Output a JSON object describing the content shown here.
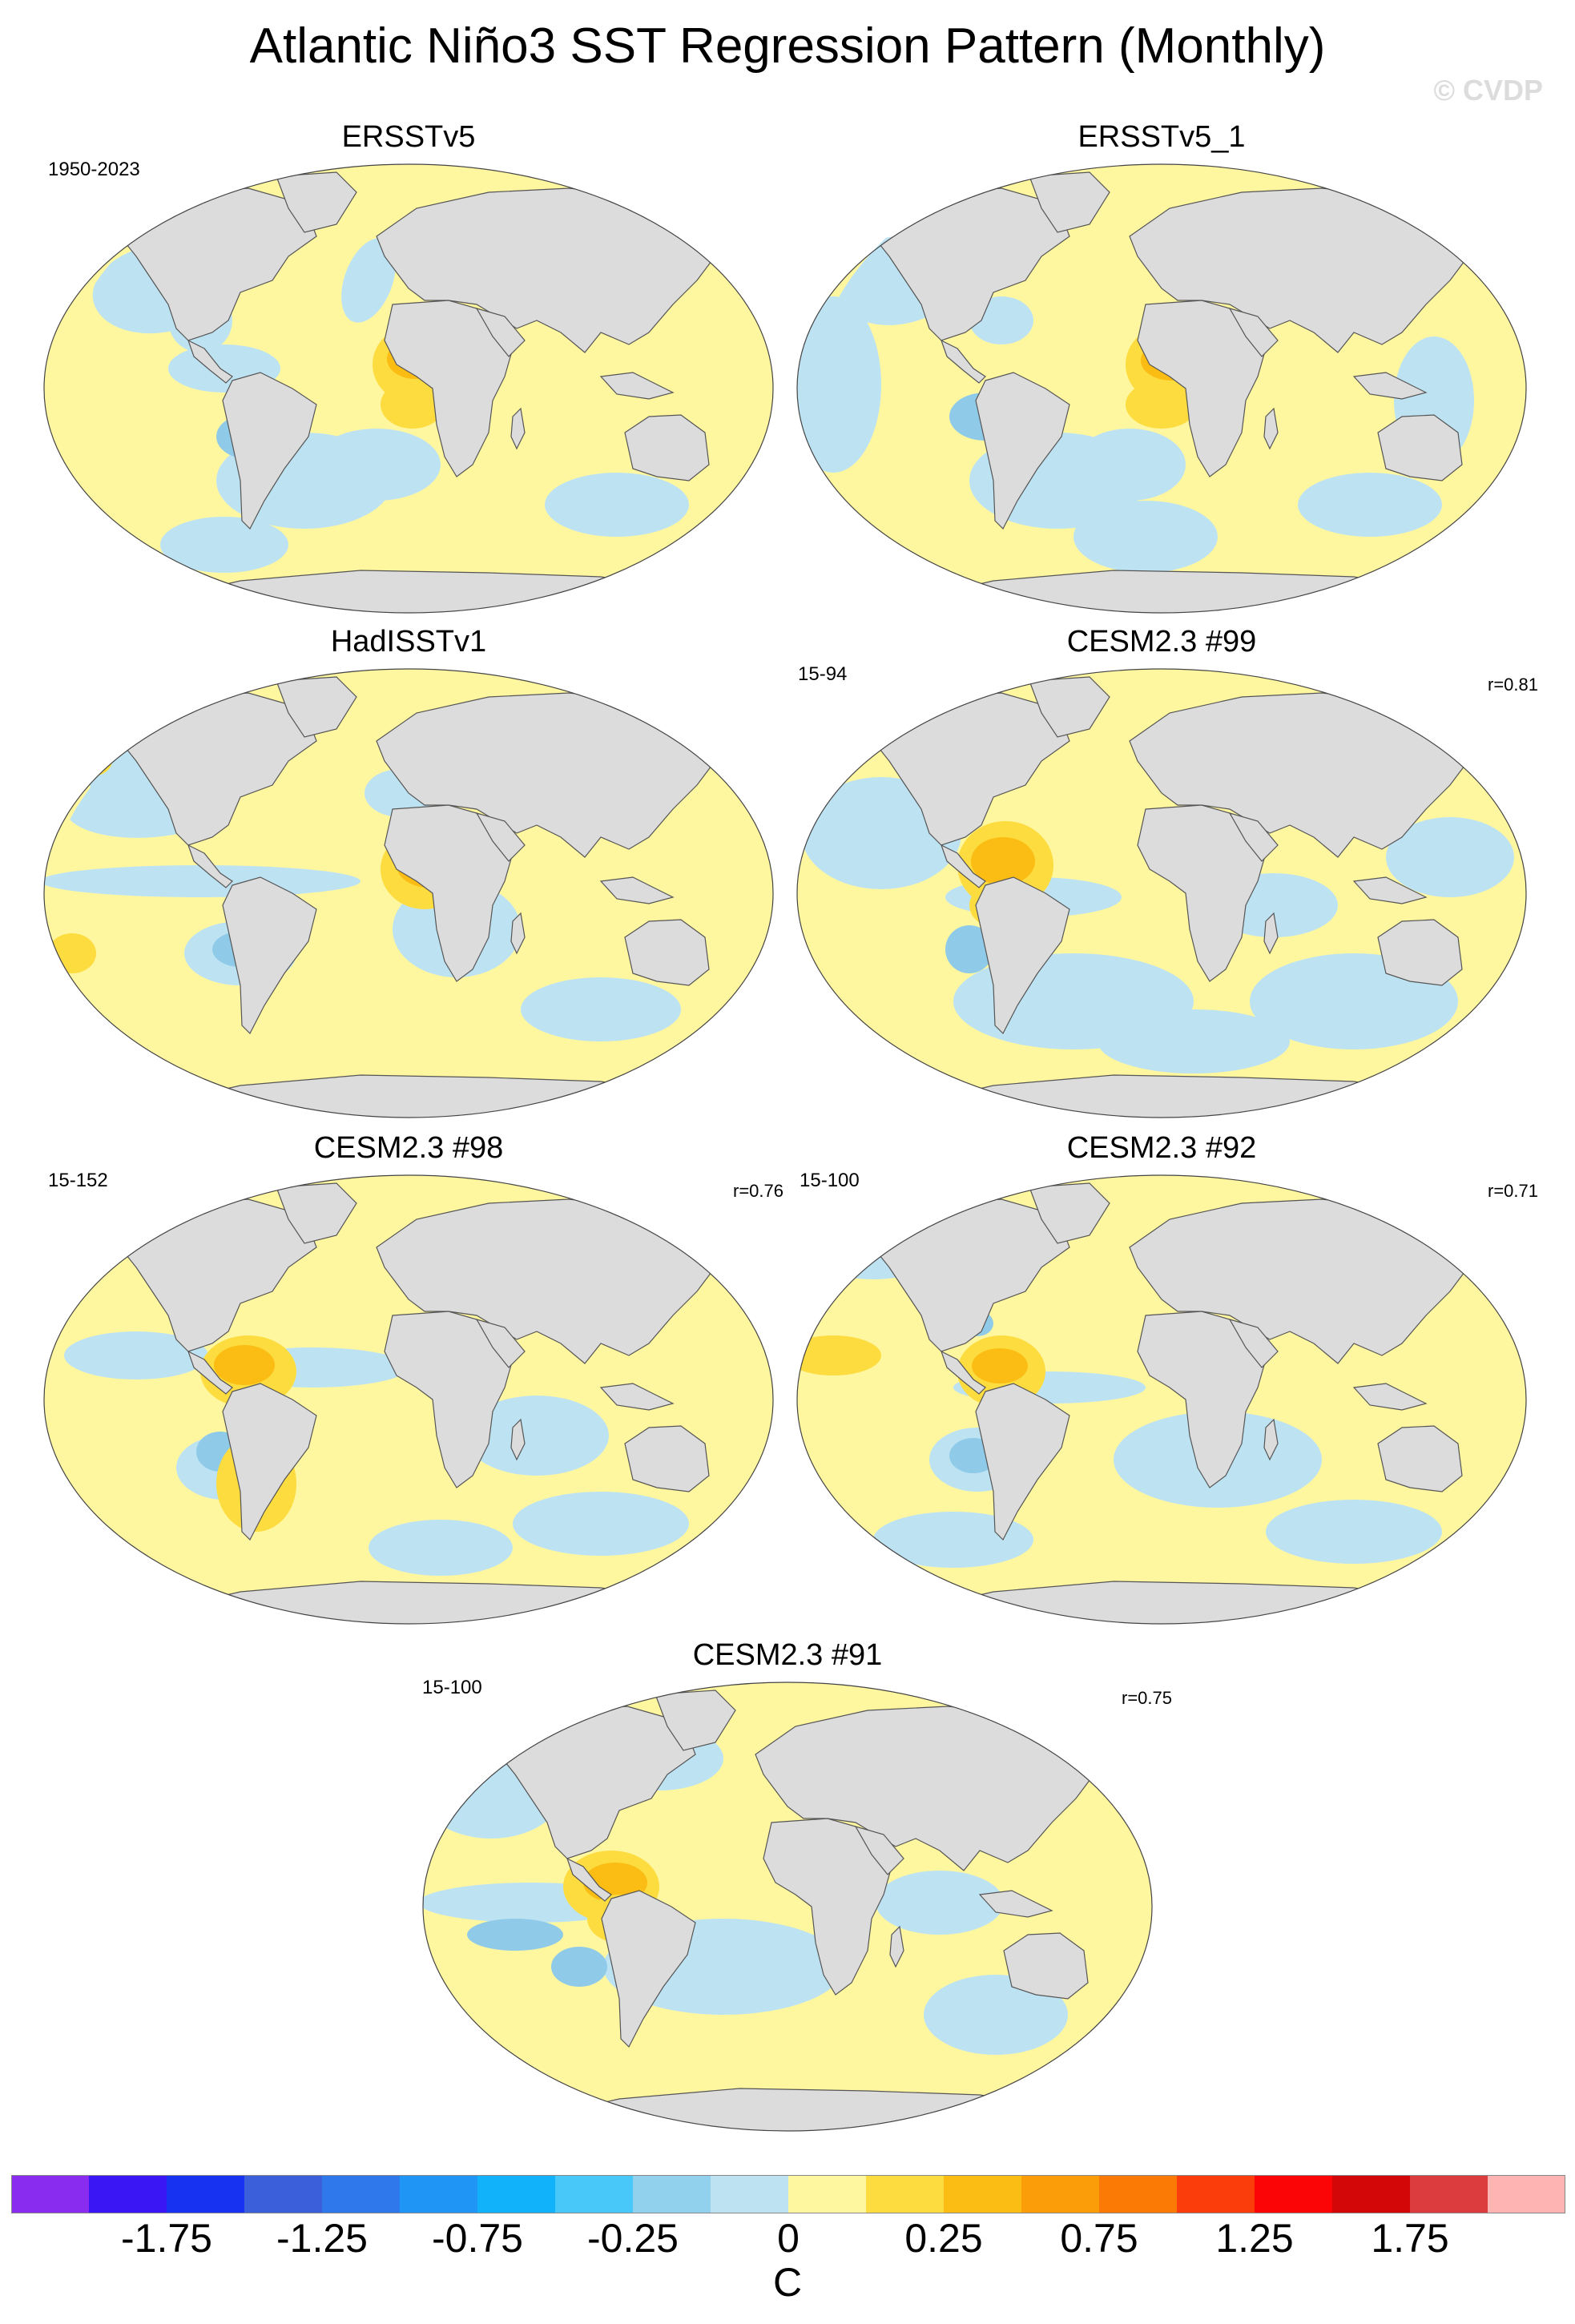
{
  "title": "Atlantic Niño3 SST Regression Pattern (Monthly)",
  "watermark": "© CVDP",
  "colors": {
    "land": "#dcdcdc",
    "coast": "#555555",
    "neg1": "#bde3f3",
    "neg2": "#8fcbe9",
    "pos1": "#fff6a0",
    "pos2": "#fddc3f",
    "pos3": "#fbbd14"
  },
  "panels": [
    {
      "name": "ERSSTv5",
      "left_text": "1950-2023",
      "right_text": ""
    },
    {
      "name": "ERSSTv5_1",
      "left_text": "",
      "right_text": ""
    },
    {
      "name": "HadISSTv1",
      "left_text": "",
      "right_text": ""
    },
    {
      "name": "CESM2.3 #99",
      "left_text": "15-94",
      "right_text": "r=0.81"
    },
    {
      "name": "CESM2.3 #98",
      "left_text": "15-152",
      "right_text": "r=0.76"
    },
    {
      "name": "CESM2.3 #92",
      "left_text": "15-100",
      "right_text": "r=0.71"
    },
    {
      "name": "CESM2.3 #91",
      "left_text": "15-100",
      "right_text": "r=0.75"
    }
  ],
  "chart_data": {
    "type": "heatmap",
    "map_projection": "robinson",
    "variable": "SST regression onto Atlantic Niño3 index",
    "max_anomaly_region": "Gulf of Guinea / eastern equatorial Atlantic",
    "colorbar": {
      "unit": "C",
      "tick_labels": [
        "-1.75",
        "-1.25",
        "-0.75",
        "-0.25",
        "0",
        "0.25",
        "0.75",
        "1.25",
        "1.75"
      ],
      "colors": [
        "#8a2bf0",
        "#3a16f5",
        "#1832f2",
        "#3b5fdb",
        "#2f78ec",
        "#1f95f5",
        "#12b2fb",
        "#47c8f8",
        "#92d1ed",
        "#bde3f3",
        "#fff6a0",
        "#fddc3f",
        "#fbbd14",
        "#fb9d09",
        "#fa7a05",
        "#fb3d0b",
        "#fb0506",
        "#d40708",
        "#dd3c3e",
        "#ffb4b4"
      ],
      "levels": [
        -2.0,
        -1.75,
        -1.5,
        -1.25,
        -1.0,
        -0.75,
        -0.5,
        -0.25,
        -0.1,
        0,
        0.1,
        0.25,
        0.5,
        0.75,
        1.0,
        1.25,
        1.5,
        1.75,
        2.0
      ]
    }
  }
}
